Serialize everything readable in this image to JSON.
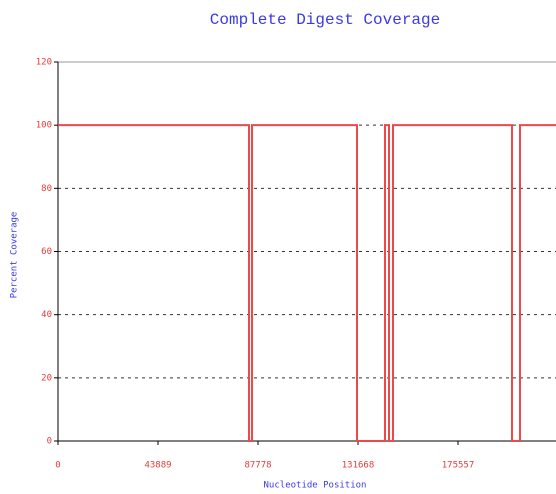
{
  "chart_data": {
    "type": "line",
    "title": "Complete Digest Coverage",
    "x_label": "Nucleotide Position",
    "y_label": "Percent Coverage",
    "x": [
      0,
      83830,
      83830,
      85150,
      85150,
      131230,
      131230,
      143520,
      143520,
      145275,
      145275,
      147030,
      147030,
      199260,
      199260,
      202770,
      202770,
      218570
    ],
    "values": [
      100,
      100,
      0,
      0,
      100,
      100,
      0,
      0,
      100,
      100,
      0,
      0,
      100,
      100,
      0,
      0,
      100,
      100
    ],
    "color": "#ec4a4a",
    "xlim": [
      0,
      218570
    ],
    "xticks": [
      0,
      43889,
      87778,
      131668,
      175557
    ],
    "ylim": [
      0,
      120
    ],
    "yticks": [
      0,
      20,
      40,
      60,
      80,
      100,
      120
    ],
    "grid": true
  }
}
